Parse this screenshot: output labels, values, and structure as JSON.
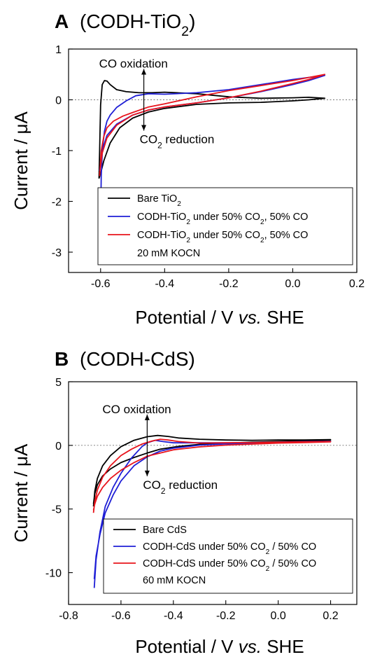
{
  "chart_data": [
    {
      "type": "line",
      "panel_label": "A",
      "title": "(CODH-TiO2)",
      "xlabel": "Potential / V vs. SHE",
      "ylabel": "Current / μA",
      "xlim": [
        -0.7,
        0.2
      ],
      "ylim": [
        -3.4,
        1.0
      ],
      "xticks": [
        -0.6,
        -0.4,
        -0.2,
        0.0,
        0.2
      ],
      "yticks": [
        1,
        0,
        -1,
        -2,
        -3
      ],
      "xtick_labels": [
        "-0.6",
        "-0.4",
        "-0.2",
        "0.0",
        "0.2"
      ],
      "ytick_labels": [
        "1",
        "0",
        "-1",
        "-2",
        "-3"
      ],
      "zero_line": true,
      "legend_position": "bottom-right",
      "annotations": {
        "up": "CO oxidation",
        "down_prefix": "CO",
        "down_sub": "2",
        "down_suffix": " reduction",
        "arrow_x": -0.465
      },
      "series": [
        {
          "name": "Bare TiO2",
          "color": "#000000",
          "legend_parts": [
            [
              "Bare TiO",
              ""
            ],
            [
              "2",
              "sub"
            ]
          ],
          "x": [
            -0.605,
            -0.603,
            -0.6,
            -0.595,
            -0.588,
            -0.58,
            -0.57,
            -0.55,
            -0.52,
            -0.48,
            -0.44,
            -0.4,
            -0.3,
            -0.2,
            -0.1,
            0.0,
            0.05,
            0.1,
            0.1,
            0.05,
            0.0,
            -0.1,
            -0.2,
            -0.3,
            -0.4,
            -0.45,
            -0.5,
            -0.54,
            -0.57,
            -0.59,
            -0.6,
            -0.605
          ],
          "y": [
            -1.55,
            -1.0,
            -0.1,
            0.3,
            0.38,
            0.37,
            0.3,
            0.2,
            0.16,
            0.14,
            0.14,
            0.15,
            0.12,
            0.06,
            0.03,
            0.04,
            0.05,
            0.03,
            0.03,
            0.0,
            -0.02,
            -0.05,
            -0.06,
            -0.09,
            -0.17,
            -0.24,
            -0.36,
            -0.55,
            -0.85,
            -1.2,
            -1.45,
            -1.55
          ]
        },
        {
          "name": "CODH-TiO2 under 50% CO2, 50% CO",
          "color": "#1f1fd6",
          "legend_parts": [
            [
              "CODH-TiO",
              ""
            ],
            [
              "2",
              "sub"
            ],
            [
              " under 50% CO",
              ""
            ],
            [
              "2",
              "sub"
            ],
            [
              ", 50% CO",
              ""
            ]
          ],
          "x": [
            -0.603,
            -0.6,
            -0.598,
            -0.594,
            -0.588,
            -0.58,
            -0.57,
            -0.55,
            -0.52,
            -0.49,
            -0.45,
            -0.4,
            -0.3,
            -0.2,
            -0.1,
            0.0,
            0.1,
            0.1,
            0.05,
            0.0,
            -0.1,
            -0.2,
            -0.3,
            -0.4,
            -0.45,
            -0.5,
            -0.55,
            -0.58,
            -0.595,
            -0.6,
            -0.603
          ],
          "y": [
            -3.1,
            -2.4,
            -1.5,
            -0.95,
            -0.62,
            -0.42,
            -0.3,
            -0.15,
            -0.02,
            0.08,
            0.12,
            0.11,
            0.14,
            0.2,
            0.3,
            0.4,
            0.48,
            0.48,
            0.38,
            0.3,
            0.16,
            0.04,
            -0.06,
            -0.14,
            -0.2,
            -0.3,
            -0.48,
            -0.7,
            -1.0,
            -1.25,
            -1.4
          ]
        },
        {
          "name": "CODH-TiO2 under 50% CO2, 50% CO 20 mM KOCN",
          "color": "#e8141c",
          "legend_parts": [
            [
              "CODH-TiO",
              ""
            ],
            [
              "2",
              "sub"
            ],
            [
              " under 50% CO",
              ""
            ],
            [
              "2",
              "sub"
            ],
            [
              ", 50% CO",
              ""
            ]
          ],
          "legend_line2": "20 mM KOCN",
          "x": [
            -0.603,
            -0.598,
            -0.59,
            -0.58,
            -0.56,
            -0.53,
            -0.5,
            -0.45,
            -0.4,
            -0.3,
            -0.2,
            -0.1,
            0.0,
            0.1,
            0.1,
            0.05,
            0.0,
            -0.1,
            -0.2,
            -0.3,
            -0.4,
            -0.45,
            -0.5,
            -0.55,
            -0.58,
            -0.595,
            -0.603
          ],
          "y": [
            -1.5,
            -1.0,
            -0.72,
            -0.55,
            -0.42,
            -0.32,
            -0.25,
            -0.14,
            -0.08,
            0.06,
            0.18,
            0.28,
            0.38,
            0.5,
            0.5,
            0.4,
            0.32,
            0.17,
            0.04,
            -0.06,
            -0.14,
            -0.2,
            -0.3,
            -0.5,
            -0.75,
            -1.05,
            -1.45
          ]
        }
      ]
    },
    {
      "type": "line",
      "panel_label": "B",
      "title": "(CODH-CdS)",
      "xlabel": "Potential / V vs. SHE",
      "ylabel": "Current / μA",
      "xlim": [
        -0.8,
        0.3
      ],
      "ylim": [
        -12.5,
        5.0
      ],
      "xticks": [
        -0.8,
        -0.6,
        -0.4,
        -0.2,
        0.0,
        0.2
      ],
      "yticks": [
        5,
        0,
        -5,
        -10
      ],
      "xtick_labels": [
        "-0.8",
        "-0.6",
        "-0.4",
        "-0.2",
        "0.0",
        "0.2"
      ],
      "ytick_labels": [
        "5",
        "0",
        "-5",
        "-10"
      ],
      "zero_line": true,
      "legend_position": "bottom-right",
      "annotations": {
        "up": "CO oxidation",
        "down_prefix": "CO",
        "down_sub": "2",
        "down_suffix": " reduction",
        "arrow_x": -0.5
      },
      "series": [
        {
          "name": "Bare CdS",
          "color": "#000000",
          "legend_parts": [
            [
              "Bare CdS",
              ""
            ]
          ],
          "x": [
            -0.705,
            -0.7,
            -0.69,
            -0.67,
            -0.64,
            -0.6,
            -0.55,
            -0.5,
            -0.46,
            -0.42,
            -0.38,
            -0.3,
            -0.2,
            -0.1,
            0.0,
            0.1,
            0.2,
            0.2,
            0.1,
            0.0,
            -0.1,
            -0.2,
            -0.3,
            -0.38,
            -0.45,
            -0.5,
            -0.55,
            -0.6,
            -0.64,
            -0.67,
            -0.69,
            -0.7,
            -0.705
          ],
          "y": [
            -4.8,
            -3.6,
            -2.6,
            -1.6,
            -0.8,
            -0.1,
            0.4,
            0.68,
            0.78,
            0.7,
            0.58,
            0.48,
            0.42,
            0.4,
            0.42,
            0.42,
            0.45,
            0.42,
            0.35,
            0.3,
            0.25,
            0.18,
            0.08,
            -0.08,
            -0.3,
            -0.6,
            -0.95,
            -1.35,
            -1.85,
            -2.4,
            -3.1,
            -3.8,
            -4.6
          ]
        },
        {
          "name": "CODH-CdS under 50% CO2 / 50% CO",
          "color": "#1f1fd6",
          "legend_parts": [
            [
              "CODH-CdS under 50% CO",
              ""
            ],
            [
              "2",
              "sub"
            ],
            [
              " / 50% CO",
              ""
            ]
          ],
          "x": [
            -0.702,
            -0.695,
            -0.68,
            -0.66,
            -0.63,
            -0.6,
            -0.56,
            -0.52,
            -0.5,
            -0.47,
            -0.44,
            -0.4,
            -0.3,
            -0.2,
            -0.1,
            0.0,
            0.1,
            0.2,
            0.2,
            0.1,
            0.0,
            -0.1,
            -0.2,
            -0.3,
            -0.4,
            -0.45,
            -0.5,
            -0.55,
            -0.6,
            -0.63,
            -0.66,
            -0.68,
            -0.695,
            -0.702
          ],
          "y": [
            -11.2,
            -9.0,
            -6.8,
            -4.8,
            -3.3,
            -2.2,
            -1.0,
            -0.1,
            0.2,
            0.4,
            0.3,
            0.2,
            0.2,
            0.2,
            0.22,
            0.25,
            0.3,
            0.32,
            0.3,
            0.25,
            0.22,
            0.18,
            0.12,
            0.02,
            -0.22,
            -0.45,
            -0.9,
            -1.6,
            -2.8,
            -3.9,
            -5.3,
            -7.0,
            -8.7,
            -10.5
          ]
        },
        {
          "name": "CODH-CdS under 50% CO2 / 50% CO 60 mM KOCN",
          "color": "#e8141c",
          "legend_parts": [
            [
              "CODH-CdS under 50% CO",
              ""
            ],
            [
              "2",
              "sub"
            ],
            [
              " / 50% CO",
              ""
            ]
          ],
          "legend_line2": "60 mM KOCN",
          "x": [
            -0.705,
            -0.7,
            -0.69,
            -0.67,
            -0.64,
            -0.6,
            -0.56,
            -0.52,
            -0.48,
            -0.45,
            -0.42,
            -0.38,
            -0.3,
            -0.2,
            -0.1,
            0.0,
            0.1,
            0.2,
            0.2,
            0.1,
            0.0,
            -0.1,
            -0.2,
            -0.3,
            -0.4,
            -0.5,
            -0.55,
            -0.6,
            -0.64,
            -0.67,
            -0.69,
            -0.7,
            -0.705
          ],
          "y": [
            -5.3,
            -4.4,
            -3.5,
            -2.5,
            -1.6,
            -0.8,
            -0.3,
            0.1,
            0.35,
            0.48,
            0.42,
            0.3,
            0.18,
            0.2,
            0.22,
            0.25,
            0.28,
            0.3,
            0.28,
            0.22,
            0.18,
            0.1,
            0.02,
            -0.12,
            -0.35,
            -0.85,
            -1.35,
            -1.95,
            -2.6,
            -3.3,
            -4.0,
            -4.6,
            -5.1
          ]
        }
      ]
    }
  ]
}
